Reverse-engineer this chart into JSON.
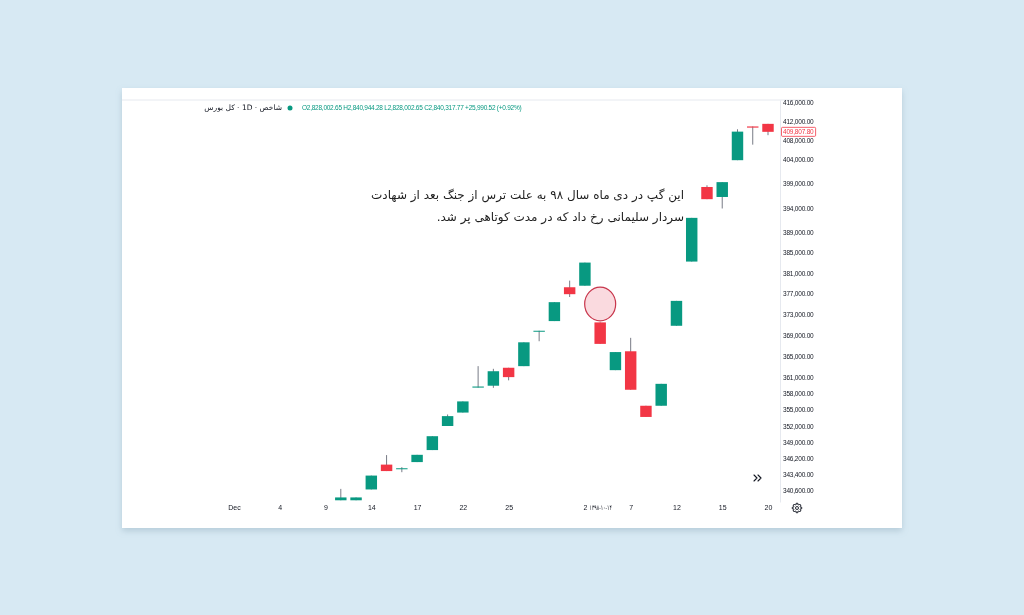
{
  "chart_data": {
    "type": "candlestick",
    "title": "شاخص · 1D · کل بورس",
    "annotations": [
      "O2,828,002.65 H2,840,944.28 L2,828,002.65 C2,840,317.77 +25,990.52 (+0.92%)",
      "این گپ در دی ماه سال ۹۸ به علت ترس از جنگ بعد از شهادت سردار سلیمانی رخ داد که در مدت کوتاهی پر شد.",
      "409,807.80"
    ],
    "categories": [
      "Dec",
      null,
      null,
      "4",
      null,
      null,
      "9",
      null,
      null,
      "14",
      null,
      null,
      "17",
      null,
      null,
      "22",
      null,
      null,
      "25",
      null,
      null,
      null,
      null,
      "2",
      "۱۳۹۸-۱۰-۱۴",
      null,
      "7",
      null,
      null,
      "12",
      null,
      null,
      "15",
      null,
      null,
      "20"
    ],
    "ohlc": [
      null,
      null,
      null,
      null,
      null,
      null,
      null,
      [
        338800,
        340800,
        338800,
        339300
      ],
      [
        338800,
        339300,
        338800,
        339300
      ],
      [
        340700,
        343150,
        340700,
        343150
      ],
      [
        345100,
        346800,
        343950,
        343950
      ],
      [
        344350,
        344650,
        343750,
        344450
      ],
      [
        345550,
        346850,
        345550,
        346850
      ],
      [
        347700,
        350200,
        347700,
        350200
      ],
      [
        352050,
        354150,
        352050,
        353850
      ],
      [
        354500,
        356550,
        354500,
        356550
      ],
      [
        359100,
        363100,
        359100,
        359300
      ],
      [
        359450,
        362600,
        359050,
        362150
      ],
      [
        362800,
        362800,
        360450,
        361050
      ],
      [
        363100,
        367600,
        363100,
        367600
      ],
      [
        369650,
        369800,
        367800,
        369800
      ],
      [
        371650,
        375300,
        371650,
        375300
      ],
      [
        378200,
        379500,
        376300,
        376850
      ],
      [
        378500,
        383050,
        378500,
        383050
      ],
      [
        371400,
        371400,
        367300,
        367300
      ],
      [
        362350,
        365750,
        362350,
        365750
      ],
      [
        365900,
        368450,
        358700,
        358700
      ],
      [
        355750,
        355750,
        353700,
        353700
      ],
      [
        355750,
        359800,
        355750,
        359800
      ],
      [
        370750,
        375550,
        370750,
        375550
      ],
      [
        383250,
        392000,
        383250,
        392000
      ],
      [
        398300,
        398650,
        395800,
        395800
      ],
      [
        396250,
        399300,
        393900,
        399300
      ],
      [
        403850,
        410350,
        403850,
        409850
      ],
      [
        410950,
        410950,
        407100,
        410700
      ],
      [
        411500,
        411500,
        409100,
        409807.8
      ]
    ],
    "colors": [
      null,
      null,
      null,
      null,
      null,
      null,
      null,
      "#089981",
      "#089981",
      "#089981",
      "#f23645",
      "#089981",
      "#089981",
      "#089981",
      "#089981",
      "#089981",
      "#089981",
      "#089981",
      "#f23645",
      "#089981",
      "#089981",
      "#089981",
      "#f23645",
      "#089981",
      "#f23645",
      "#089981",
      "#f23645",
      "#f23645",
      "#089981",
      "#089981",
      "#089981",
      "#f23645",
      "#089981",
      "#089981",
      "#f23645",
      "#f23645"
    ],
    "log": true,
    "ylim": [
      338500,
      416600
    ],
    "yticks": [
      {
        "value": 340600,
        "label": "340,600.00"
      },
      {
        "value": 343400,
        "label": "343,400.00"
      },
      {
        "value": 346200,
        "label": "346,200.00"
      },
      {
        "value": 349000,
        "label": "349,000.00"
      },
      {
        "value": 352000,
        "label": "352,000.00"
      },
      {
        "value": 355000,
        "label": "355,000.00"
      },
      {
        "value": 358000,
        "label": "358,000.00"
      },
      {
        "value": 361000,
        "label": "361,000.00"
      },
      {
        "value": 365000,
        "label": "365,000.00"
      },
      {
        "value": 369000,
        "label": "369,000.00"
      },
      {
        "value": 373000,
        "label": "373,000.00"
      },
      {
        "value": 377000,
        "label": "377,000.00"
      },
      {
        "value": 381000,
        "label": "381,000.00"
      },
      {
        "value": 385000,
        "label": "385,000.00"
      },
      {
        "value": 389000,
        "label": "389,000.00"
      },
      {
        "value": 394000,
        "label": "394,000.00"
      },
      {
        "value": 399000,
        "label": "399,000.00"
      },
      {
        "value": 404000,
        "label": "404,000.00"
      },
      {
        "value": 408000,
        "label": "408,000.00"
      },
      {
        "value": 412000,
        "label": "412,000.00"
      },
      {
        "value": 416000,
        "label": "416,000.00"
      }
    ]
  }
}
